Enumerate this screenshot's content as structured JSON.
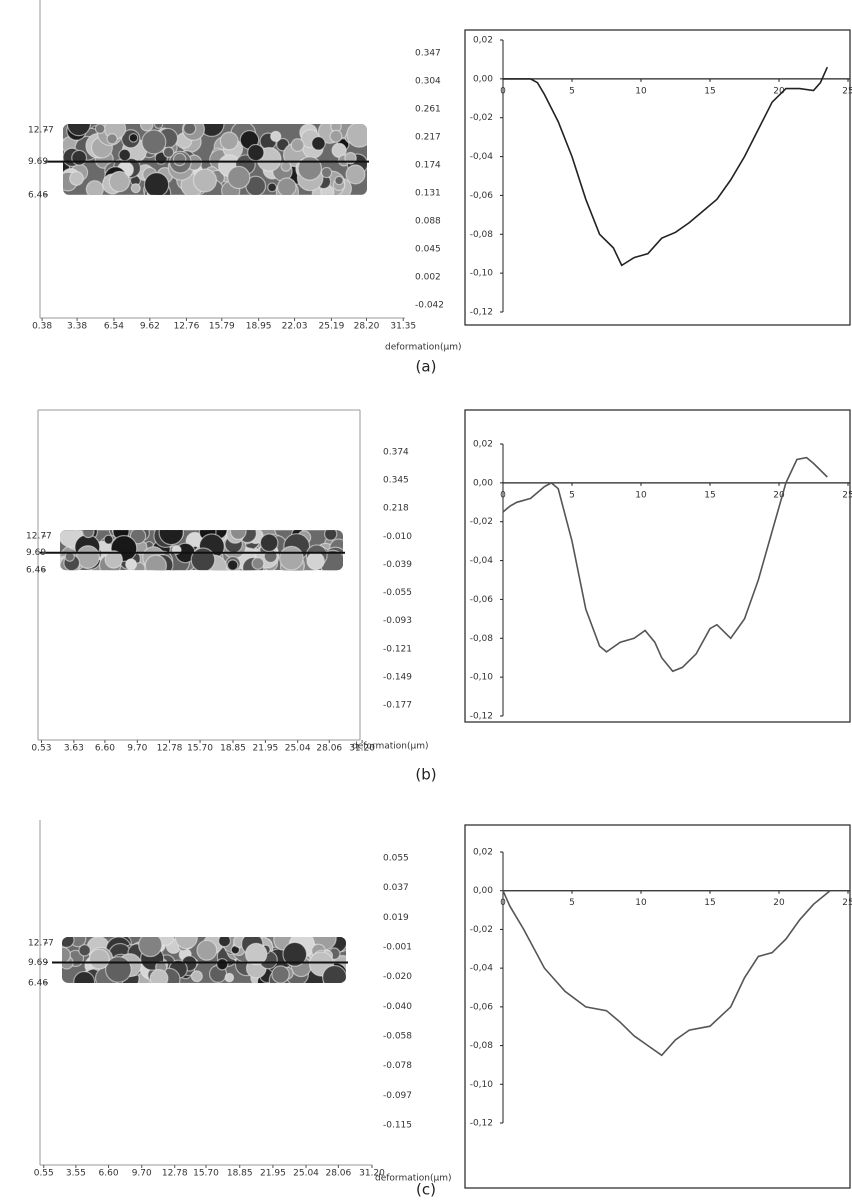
{
  "captions": [
    "(a)",
    "(b)",
    "(c)"
  ],
  "chart_data": [
    {
      "type": "heatmap",
      "xlim": [
        0.2,
        31.5
      ],
      "xticks": [
        0.38,
        3.38,
        6.54,
        9.62,
        12.76,
        15.79,
        18.95,
        22.03,
        25.19,
        {
          "value": 28.2,
          "label": "28.20"
        },
        31.35
      ],
      "ylim": [
        -5.5,
        25.4
      ],
      "yticks": [
        12.77,
        9.69,
        6.46
      ],
      "colorbar_ticks": [
        0.347,
        0.304,
        0.261,
        0.217,
        0.174,
        0.131,
        {
          "value": 0.088,
          "label": "0.088"
        },
        0.045,
        0.002,
        -0.042
      ],
      "colorbar_label": "deformation(μm)"
    },
    {
      "type": "line",
      "color": "#222222",
      "x": [
        0,
        1,
        2,
        2.5,
        3,
        3.5,
        4,
        5,
        6,
        7,
        8,
        8.6,
        9.5,
        10.5,
        11.5,
        12.5,
        13.5,
        14.5,
        15.5,
        16.5,
        17.5,
        18.5,
        19.5,
        20.5,
        21.5,
        22.5,
        23,
        23.5
      ],
      "values": [
        0,
        0,
        0,
        -0.002,
        -0.008,
        -0.015,
        -0.022,
        -0.04,
        -0.062,
        -0.08,
        -0.087,
        -0.096,
        -0.092,
        -0.09,
        -0.082,
        -0.079,
        -0.074,
        -0.068,
        -0.062,
        -0.052,
        -0.04,
        -0.026,
        -0.012,
        -0.005,
        -0.005,
        -0.006,
        -0.002,
        0.006
      ],
      "xlim": [
        0,
        25
      ],
      "xticks": [
        0,
        5,
        10,
        15,
        20,
        25
      ],
      "ylim": [
        -0.12,
        0.02
      ],
      "yticks": [
        {
          "value": 0.02,
          "label": "0,02"
        },
        {
          "value": 0,
          "label": "0,00"
        },
        {
          "value": -0.02,
          "label": "-0,02"
        },
        {
          "value": -0.04,
          "label": "-0,04"
        },
        {
          "value": -0.06,
          "label": "-0,06"
        },
        {
          "value": -0.08,
          "label": "-0,08"
        },
        {
          "value": -0.1,
          "label": "-0,10"
        },
        {
          "value": -0.12,
          "label": "-0,12"
        }
      ]
    },
    {
      "type": "heatmap",
      "xlim": [
        0.2,
        31.0
      ],
      "xticks": [
        0.53,
        3.63,
        {
          "value": 6.6,
          "label": "6.60"
        },
        {
          "value": 9.7,
          "label": "9.70"
        },
        12.78,
        {
          "value": 15.7,
          "label": "15.70"
        },
        18.85,
        21.95,
        25.04,
        28.06,
        {
          "value": 31.2,
          "label": "31.20"
        }
      ],
      "ylim": [
        -25.1,
        36.2
      ],
      "yticks": [
        12.77,
        9.69,
        6.46
      ],
      "colorbar_ticks": [
        0.374,
        0.345,
        0.218,
        {
          "value": -0.01,
          "label": "-0.010"
        },
        -0.039,
        -0.055,
        -0.093,
        -0.121,
        -0.149,
        -0.177
      ],
      "colorbar_label": "deformation(μm)"
    },
    {
      "type": "line",
      "color": "#555555",
      "x": [
        0,
        0.5,
        1,
        2,
        3,
        3.5,
        4,
        5,
        6,
        7,
        7.5,
        8.5,
        9.5,
        10.3,
        11,
        11.5,
        12.3,
        13,
        14,
        15,
        15.5,
        16.5,
        17.5,
        18.5,
        19.5,
        20.5,
        21.3,
        22,
        22.5,
        23.5
      ],
      "values": [
        -0.015,
        -0.012,
        -0.01,
        -0.008,
        -0.002,
        0,
        -0.003,
        -0.03,
        -0.065,
        -0.084,
        -0.087,
        -0.082,
        -0.08,
        -0.076,
        -0.082,
        -0.09,
        -0.097,
        -0.095,
        -0.088,
        -0.075,
        -0.073,
        -0.08,
        -0.07,
        -0.05,
        -0.025,
        0,
        0.012,
        0.013,
        0.01,
        0.003
      ],
      "xlim": [
        0,
        25
      ],
      "xticks": [
        0,
        5,
        10,
        15,
        20,
        25
      ],
      "ylim": [
        -0.12,
        0.02
      ],
      "yticks": [
        {
          "value": 0.02,
          "label": "0,02"
        },
        {
          "value": 0,
          "label": "0,00"
        },
        {
          "value": -0.02,
          "label": "-0,02"
        },
        {
          "value": -0.04,
          "label": "-0,04"
        },
        {
          "value": -0.06,
          "label": "-0,06"
        },
        {
          "value": -0.08,
          "label": "-0,08"
        },
        {
          "value": -0.1,
          "label": "-0,10"
        },
        {
          "value": -0.12,
          "label": "-0,12"
        }
      ]
    },
    {
      "type": "heatmap",
      "xlim": [
        0.2,
        31.2
      ],
      "xticks": [
        0.55,
        3.55,
        {
          "value": 6.6,
          "label": "6.60"
        },
        {
          "value": 9.7,
          "label": "9.70"
        },
        12.78,
        {
          "value": 15.7,
          "label": "15.70"
        },
        18.85,
        21.95,
        25.04,
        28.06,
        {
          "value": 31.2,
          "label": "31.20"
        }
      ],
      "ylim": [
        -22.3,
        32.2
      ],
      "yticks": [
        12.77,
        9.69,
        6.46
      ],
      "colorbar_ticks": [
        0.055,
        0.037,
        0.019,
        -0.001,
        {
          "value": -0.02,
          "label": "-0.020"
        },
        {
          "value": -0.04,
          "label": "-0.040"
        },
        -0.058,
        -0.078,
        -0.097,
        -0.115
      ],
      "colorbar_label": "deformation(μm)"
    },
    {
      "type": "line",
      "color": "#555555",
      "x": [
        0,
        0.5,
        1.5,
        3,
        4.5,
        6,
        7.5,
        8.5,
        9.5,
        10.5,
        11.5,
        12.5,
        13.5,
        15,
        16.5,
        17.5,
        18.5,
        19.5,
        20.5,
        21.5,
        22.5,
        23.7
      ],
      "values": [
        0,
        -0.008,
        -0.02,
        -0.04,
        -0.052,
        -0.06,
        -0.062,
        -0.068,
        -0.075,
        -0.08,
        -0.085,
        -0.077,
        -0.072,
        -0.07,
        -0.06,
        -0.045,
        -0.034,
        -0.032,
        -0.025,
        -0.015,
        -0.007,
        0
      ],
      "xlim": [
        0,
        25
      ],
      "xticks": [
        0,
        5,
        10,
        15,
        20,
        25
      ],
      "ylim": [
        -0.12,
        0.02
      ],
      "yticks": [
        {
          "value": 0.02,
          "label": "0,02"
        },
        {
          "value": 0,
          "label": "0,00"
        },
        {
          "value": -0.02,
          "label": "-0,02"
        },
        {
          "value": -0.04,
          "label": "-0,04"
        },
        {
          "value": -0.06,
          "label": "-0,06"
        },
        {
          "value": -0.08,
          "label": "-0,08"
        },
        {
          "value": -0.1,
          "label": "-0,10"
        },
        {
          "value": -0.12,
          "label": "-0,12"
        }
      ]
    }
  ]
}
